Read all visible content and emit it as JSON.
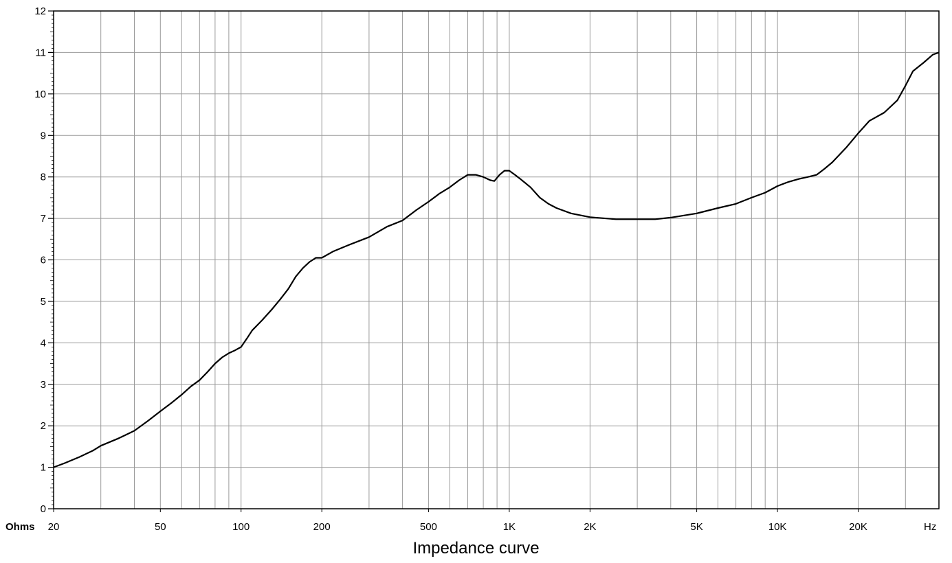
{
  "chart_data": {
    "type": "line",
    "title": "Impedance curve",
    "x_scale": "log",
    "xlim": [
      20,
      40000
    ],
    "ylim": [
      0,
      12
    ],
    "grid": true,
    "y_unit": "Ohms",
    "x_unit": "Hz",
    "y_ticks": [
      {
        "value": 0,
        "label": "0"
      },
      {
        "value": 1,
        "label": "1"
      },
      {
        "value": 2,
        "label": "2"
      },
      {
        "value": 3,
        "label": "3"
      },
      {
        "value": 4,
        "label": "4"
      },
      {
        "value": 5,
        "label": "5"
      },
      {
        "value": 6,
        "label": "6"
      },
      {
        "value": 7,
        "label": "7"
      },
      {
        "value": 8,
        "label": "8"
      },
      {
        "value": 9,
        "label": "9"
      },
      {
        "value": 10,
        "label": "10"
      },
      {
        "value": 11,
        "label": "11"
      },
      {
        "value": 12,
        "label": "12"
      }
    ],
    "x_ticks": [
      {
        "value": 20,
        "label": "20"
      },
      {
        "value": 50,
        "label": "50"
      },
      {
        "value": 100,
        "label": "100"
      },
      {
        "value": 200,
        "label": "200"
      },
      {
        "value": 500,
        "label": "500"
      },
      {
        "value": 1000,
        "label": "1K"
      },
      {
        "value": 2000,
        "label": "2K"
      },
      {
        "value": 5000,
        "label": "5K"
      },
      {
        "value": 10000,
        "label": "10K"
      },
      {
        "value": 20000,
        "label": "20K"
      }
    ],
    "x_gridlines": [
      30,
      40,
      50,
      60,
      70,
      80,
      90,
      100,
      200,
      300,
      400,
      500,
      600,
      700,
      800,
      900,
      1000,
      2000,
      3000,
      4000,
      5000,
      6000,
      7000,
      8000,
      9000,
      10000,
      20000,
      30000
    ],
    "series": [
      {
        "color": "#000000",
        "points": [
          [
            20,
            1.0
          ],
          [
            22,
            1.1
          ],
          [
            25,
            1.25
          ],
          [
            28,
            1.4
          ],
          [
            30,
            1.52
          ],
          [
            35,
            1.7
          ],
          [
            40,
            1.88
          ],
          [
            45,
            2.12
          ],
          [
            50,
            2.35
          ],
          [
            55,
            2.55
          ],
          [
            60,
            2.75
          ],
          [
            65,
            2.95
          ],
          [
            70,
            3.1
          ],
          [
            75,
            3.3
          ],
          [
            80,
            3.5
          ],
          [
            85,
            3.65
          ],
          [
            90,
            3.75
          ],
          [
            95,
            3.82
          ],
          [
            100,
            3.9
          ],
          [
            105,
            4.1
          ],
          [
            110,
            4.3
          ],
          [
            120,
            4.55
          ],
          [
            130,
            4.8
          ],
          [
            140,
            5.05
          ],
          [
            150,
            5.3
          ],
          [
            160,
            5.6
          ],
          [
            170,
            5.8
          ],
          [
            180,
            5.95
          ],
          [
            190,
            6.05
          ],
          [
            200,
            6.05
          ],
          [
            220,
            6.2
          ],
          [
            250,
            6.35
          ],
          [
            300,
            6.55
          ],
          [
            350,
            6.8
          ],
          [
            400,
            6.95
          ],
          [
            450,
            7.2
          ],
          [
            500,
            7.4
          ],
          [
            550,
            7.6
          ],
          [
            600,
            7.75
          ],
          [
            650,
            7.92
          ],
          [
            700,
            8.05
          ],
          [
            750,
            8.05
          ],
          [
            800,
            8.0
          ],
          [
            850,
            7.92
          ],
          [
            880,
            7.9
          ],
          [
            920,
            8.05
          ],
          [
            960,
            8.15
          ],
          [
            1000,
            8.15
          ],
          [
            1050,
            8.05
          ],
          [
            1100,
            7.95
          ],
          [
            1200,
            7.75
          ],
          [
            1300,
            7.5
          ],
          [
            1400,
            7.35
          ],
          [
            1500,
            7.25
          ],
          [
            1700,
            7.12
          ],
          [
            2000,
            7.03
          ],
          [
            2500,
            6.98
          ],
          [
            3000,
            6.98
          ],
          [
            3500,
            6.98
          ],
          [
            4000,
            7.02
          ],
          [
            5000,
            7.12
          ],
          [
            6000,
            7.25
          ],
          [
            7000,
            7.35
          ],
          [
            8000,
            7.5
          ],
          [
            9000,
            7.62
          ],
          [
            10000,
            7.78
          ],
          [
            11000,
            7.88
          ],
          [
            12000,
            7.95
          ],
          [
            13000,
            8.0
          ],
          [
            14000,
            8.05
          ],
          [
            15000,
            8.2
          ],
          [
            16000,
            8.35
          ],
          [
            18000,
            8.7
          ],
          [
            20000,
            9.05
          ],
          [
            22000,
            9.35
          ],
          [
            25000,
            9.55
          ],
          [
            28000,
            9.85
          ],
          [
            30000,
            10.2
          ],
          [
            32000,
            10.55
          ],
          [
            35000,
            10.75
          ],
          [
            38000,
            10.95
          ],
          [
            40000,
            11.0
          ]
        ]
      }
    ]
  }
}
